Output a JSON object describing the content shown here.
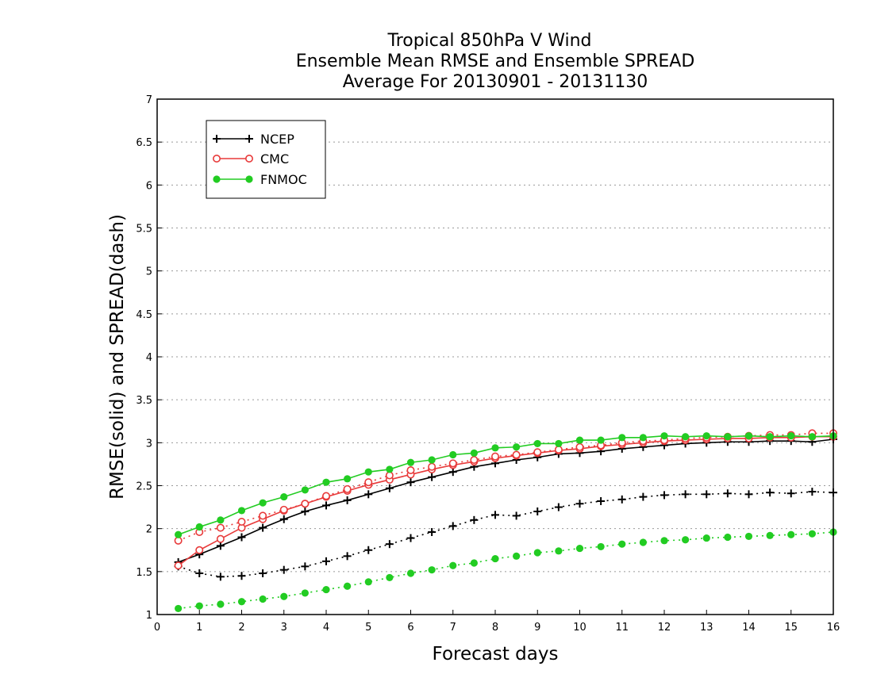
{
  "chart_data": {
    "type": "line",
    "title": [
      "Tropical 850hPa V Wind",
      "Ensemble Mean RMSE and Ensemble SPREAD",
      "Average For 20130901 - 20131130"
    ],
    "xlabel": "Forecast days",
    "ylabel": "RMSE(solid) and SPREAD(dash)",
    "xlim": [
      0,
      16
    ],
    "ylim": [
      1,
      7
    ],
    "xticks": [
      "0",
      "1",
      "2",
      "3",
      "4",
      "5",
      "6",
      "7",
      "8",
      "9",
      "10",
      "11",
      "12",
      "13",
      "14",
      "15",
      "16"
    ],
    "yticks": [
      "1",
      "1.5",
      "2",
      "2.5",
      "3",
      "3.5",
      "4",
      "4.5",
      "5",
      "5.5",
      "6",
      "6.5",
      "7"
    ],
    "grid": "horizontal dotted",
    "legend_position": "top-left",
    "x": [
      0.5,
      1,
      1.5,
      2,
      2.5,
      3,
      3.5,
      4,
      4.5,
      5,
      5.5,
      6,
      6.5,
      7,
      7.5,
      8,
      8.5,
      9,
      9.5,
      10,
      10.5,
      11,
      11.5,
      12,
      12.5,
      13,
      13.5,
      14,
      14.5,
      15,
      15.5,
      16
    ],
    "series": [
      {
        "name": "NCEP",
        "marker": "plus",
        "color": "#000000",
        "rmse": [
          1.61,
          1.7,
          1.8,
          1.9,
          2.01,
          2.11,
          2.2,
          2.27,
          2.33,
          2.4,
          2.47,
          2.54,
          2.6,
          2.66,
          2.72,
          2.76,
          2.8,
          2.83,
          2.87,
          2.88,
          2.9,
          2.93,
          2.95,
          2.97,
          2.99,
          3.0,
          3.01,
          3.01,
          3.02,
          3.02,
          3.01,
          3.04
        ],
        "spread": [
          1.56,
          1.48,
          1.44,
          1.45,
          1.48,
          1.52,
          1.56,
          1.62,
          1.68,
          1.75,
          1.82,
          1.89,
          1.96,
          2.03,
          2.1,
          2.16,
          2.15,
          2.2,
          2.25,
          2.29,
          2.32,
          2.34,
          2.37,
          2.39,
          2.4,
          2.4,
          2.41,
          2.4,
          2.42,
          2.41,
          2.43,
          2.42
        ]
      },
      {
        "name": "CMC",
        "marker": "open-circle",
        "color": "#e83a3a",
        "rmse": [
          1.57,
          1.75,
          1.88,
          2.01,
          2.11,
          2.21,
          2.29,
          2.37,
          2.44,
          2.51,
          2.57,
          2.63,
          2.69,
          2.74,
          2.78,
          2.82,
          2.85,
          2.88,
          2.91,
          2.93,
          2.96,
          2.98,
          3.0,
          3.02,
          3.03,
          3.04,
          3.05,
          3.05,
          3.06,
          3.06,
          3.07,
          3.07
        ],
        "spread": [
          1.86,
          1.96,
          2.01,
          2.08,
          2.15,
          2.22,
          2.29,
          2.38,
          2.46,
          2.54,
          2.62,
          2.68,
          2.72,
          2.76,
          2.8,
          2.84,
          2.86,
          2.89,
          2.92,
          2.95,
          2.97,
          3.0,
          3.02,
          3.03,
          3.05,
          3.06,
          3.07,
          3.08,
          3.09,
          3.09,
          3.11,
          3.11
        ]
      },
      {
        "name": "FNMOC",
        "marker": "filled-circle",
        "color": "#22cc22",
        "rmse": [
          1.93,
          2.02,
          2.1,
          2.21,
          2.3,
          2.37,
          2.45,
          2.54,
          2.58,
          2.66,
          2.69,
          2.77,
          2.8,
          2.86,
          2.88,
          2.94,
          2.95,
          2.99,
          2.99,
          3.03,
          3.03,
          3.06,
          3.06,
          3.08,
          3.07,
          3.08,
          3.07,
          3.08,
          3.07,
          3.08,
          3.07,
          3.08
        ],
        "spread": [
          1.07,
          1.1,
          1.12,
          1.15,
          1.18,
          1.21,
          1.25,
          1.29,
          1.33,
          1.38,
          1.43,
          1.48,
          1.52,
          1.57,
          1.6,
          1.65,
          1.68,
          1.72,
          1.74,
          1.77,
          1.79,
          1.82,
          1.84,
          1.86,
          1.87,
          1.89,
          1.9,
          1.91,
          1.92,
          1.93,
          1.94,
          1.96
        ]
      }
    ]
  }
}
